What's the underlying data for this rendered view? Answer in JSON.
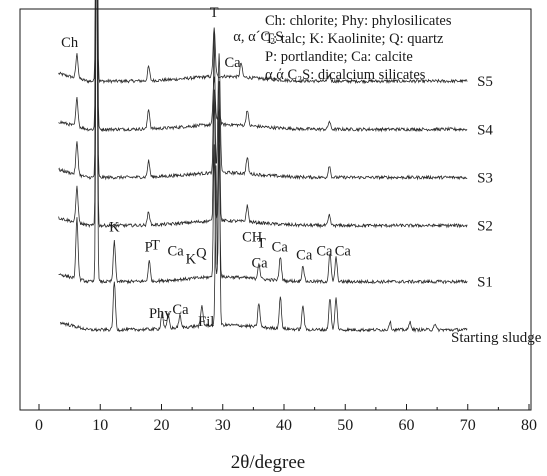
{
  "chart_data": {
    "type": "line",
    "xlabel": "2θ/degree",
    "ylabel": "",
    "xlim": [
      0,
      80
    ],
    "xticks": [
      0,
      10,
      20,
      30,
      40,
      50,
      60,
      70,
      80
    ],
    "grid": false,
    "legend_position": "top-right",
    "legend_lines": [
      "Ch: chlorite; Phy: phylosilicates",
      "T: talc; K: Kaolinite; Q: quartz",
      "P: portlandite; Ca: calcite",
      "α,ά C₂S:  dicalcium silicates"
    ],
    "series": [
      {
        "name": "S5",
        "baseline": 0.82,
        "peaks": [
          [
            6.2,
            0.06
          ],
          [
            9.4,
            0.95
          ],
          [
            17.9,
            0.035
          ],
          [
            28.6,
            0.12
          ],
          [
            33.0,
            0.035
          ],
          [
            47.4,
            0.015
          ]
        ]
      },
      {
        "name": "S4",
        "baseline": 0.7,
        "peaks": [
          [
            6.2,
            0.07
          ],
          [
            9.4,
            0.95
          ],
          [
            17.9,
            0.05
          ],
          [
            28.6,
            0.12
          ],
          [
            29.4,
            0.04
          ],
          [
            34.0,
            0.04
          ],
          [
            47.4,
            0.02
          ]
        ]
      },
      {
        "name": "S3",
        "baseline": 0.58,
        "peaks": [
          [
            6.2,
            0.08
          ],
          [
            9.4,
            0.95
          ],
          [
            17.9,
            0.04
          ],
          [
            28.6,
            0.35
          ],
          [
            29.4,
            0.3
          ],
          [
            34.0,
            0.04
          ],
          [
            47.4,
            0.03
          ]
        ]
      },
      {
        "name": "S2",
        "baseline": 0.46,
        "peaks": [
          [
            6.2,
            0.09
          ],
          [
            9.4,
            0.95
          ],
          [
            17.9,
            0.035
          ],
          [
            28.6,
            0.33
          ],
          [
            29.4,
            0.35
          ],
          [
            34.0,
            0.04
          ],
          [
            47.4,
            0.025
          ]
        ]
      },
      {
        "name": "S1",
        "baseline": 0.32,
        "peaks": [
          [
            6.2,
            0.15
          ],
          [
            9.4,
            0.95
          ],
          [
            12.3,
            0.1
          ],
          [
            18.0,
            0.05
          ],
          [
            28.6,
            0.33
          ],
          [
            29.4,
            0.33
          ],
          [
            35.9,
            0.04
          ],
          [
            39.4,
            0.06
          ],
          [
            43.1,
            0.04
          ],
          [
            47.5,
            0.07
          ],
          [
            48.5,
            0.06
          ]
        ]
      },
      {
        "name": "Starting sludge",
        "baseline": 0.2,
        "peaks": [
          [
            12.3,
            0.12
          ],
          [
            20.1,
            0.04
          ],
          [
            21.1,
            0.035
          ],
          [
            23.0,
            0.03
          ],
          [
            26.6,
            0.05
          ],
          [
            28.9,
            0.4
          ],
          [
            29.4,
            0.55
          ],
          [
            35.9,
            0.06
          ],
          [
            39.4,
            0.08
          ],
          [
            43.1,
            0.06
          ],
          [
            47.5,
            0.08
          ],
          [
            48.5,
            0.08
          ],
          [
            57.3,
            0.02
          ],
          [
            60.6,
            0.02
          ],
          [
            64.6,
            0.015
          ]
        ]
      }
    ],
    "annotations": [
      {
        "text": "T",
        "x": 9.1,
        "series": "S5",
        "dy": 0.84
      },
      {
        "text": "T",
        "x": 28.6,
        "series": "S5",
        "dy": 0.16
      },
      {
        "text": "α, α´C₂S",
        "x": 35.8,
        "series": "S5",
        "dy": 0.1
      },
      {
        "text": "Ch",
        "x": 5.0,
        "series": "S5",
        "dy": 0.085
      },
      {
        "text": "Ca",
        "x": 31.6,
        "series": "S4",
        "dy": 0.155
      },
      {
        "text": "K",
        "x": 12.3,
        "series": "S1",
        "dy": 0.125
      },
      {
        "text": "P",
        "x": 17.9,
        "series": "S1",
        "dy": 0.075
      },
      {
        "text": "T",
        "x": 19.0,
        "series": "S1",
        "dy": 0.08
      },
      {
        "text": "Ca",
        "x": 22.3,
        "series": "S1",
        "dy": 0.065
      },
      {
        "text": "K",
        "x": 24.8,
        "series": "S1",
        "dy": 0.045
      },
      {
        "text": "Q",
        "x": 26.5,
        "series": "S1",
        "dy": 0.06
      },
      {
        "text": "CH",
        "x": 34.8,
        "series": "S1",
        "dy": 0.1
      },
      {
        "text": "T",
        "x": 36.3,
        "series": "S1",
        "dy": 0.085
      },
      {
        "text": "Ca",
        "x": 39.3,
        "series": "S1",
        "dy": 0.075
      },
      {
        "text": "Ca",
        "x": 36.0,
        "series": "S1",
        "dy": 0.035
      },
      {
        "text": "Ca",
        "x": 43.3,
        "series": "S1",
        "dy": 0.055
      },
      {
        "text": "Ca",
        "x": 46.6,
        "series": "S1",
        "dy": 0.065
      },
      {
        "text": "Ca",
        "x": 49.6,
        "series": "S1",
        "dy": 0.065
      },
      {
        "text": "Phy",
        "x": 19.8,
        "series": "Starting sludge",
        "dy": 0.03
      },
      {
        "text": "Ca",
        "x": 23.1,
        "series": "Starting sludge",
        "dy": 0.04
      },
      {
        "text": "Fil",
        "x": 27.3,
        "series": "Starting sludge",
        "dy": 0.01
      }
    ]
  }
}
